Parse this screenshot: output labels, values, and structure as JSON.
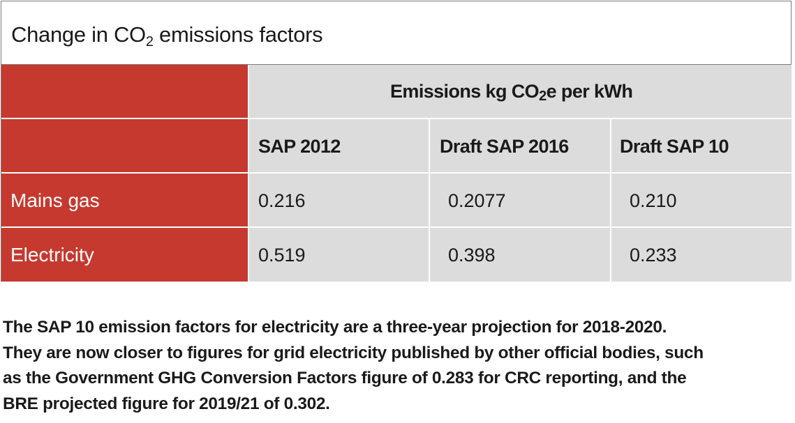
{
  "table": {
    "title_pre": "Change in CO",
    "title_sub": "2",
    "title_post": " emissions factors",
    "unit_header_pre": "Emissions kg CO",
    "unit_header_sub": "2",
    "unit_header_post": "e per kWh",
    "columns": [
      "SAP 2012",
      "Draft SAP 2016",
      "Draft SAP 10"
    ],
    "rows": [
      {
        "label": "Mains gas",
        "values": [
          "0.216",
          "0.2077",
          "0.210"
        ]
      },
      {
        "label": "Electricity",
        "values": [
          "0.519",
          "0.398",
          "0.233"
        ]
      }
    ]
  },
  "note": {
    "lines": [
      "The SAP 10 emission factors for electricity are a three-year projection for 2018-2020.",
      "They are now closer to figures for grid electricity published by other official bodies, such",
      "as the Government GHG Conversion Factors figure of 0.283 for CRC reporting, and the",
      "BRE projected figure for 2019/21 of 0.302."
    ]
  },
  "colors": {
    "header_red": "#c6392f",
    "cell_grey": "#dcdcdc",
    "text": "#1a1a1a"
  }
}
